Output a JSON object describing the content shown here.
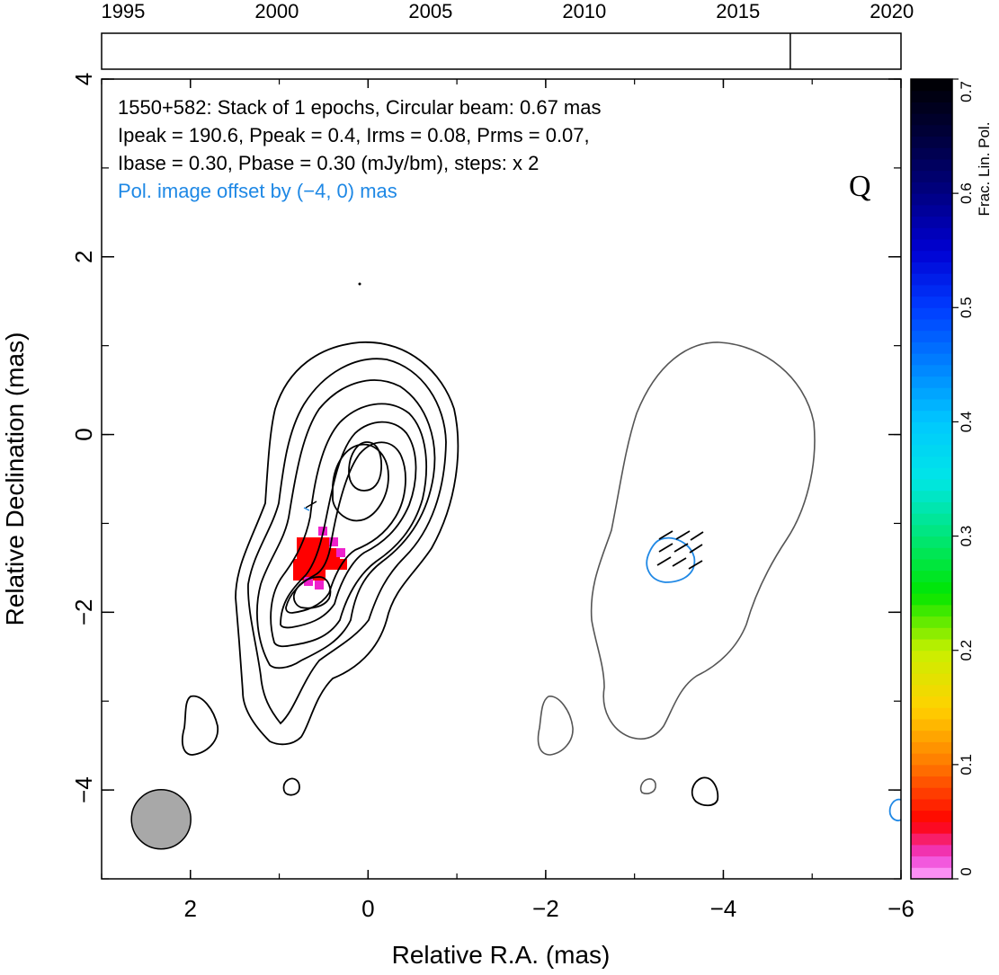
{
  "chart_data": {
    "type": "contour",
    "source": "1550+582",
    "info_lines": [
      "1550+582: Stack of 1 epochs, Circular beam: 0.67 mas",
      "Ipeak = 190.6, Ppeak = 0.4, Irms = 0.08, Prms = 0.07,",
      "Ibase = 0.30, Pbase = 0.30 (mJy/bm), steps: x 2"
    ],
    "offset_note": "Pol. image offset by (−4, 0) mas",
    "stokes_label": "Q",
    "xlabel": "Relative R.A. (mas)",
    "ylabel": "Relative Declination (mas)",
    "xlim": [
      3,
      -6
    ],
    "ylim": [
      -5,
      4
    ],
    "x_ticks": [
      {
        "value": 2,
        "label": "2"
      },
      {
        "value": 0,
        "label": "0"
      },
      {
        "value": -2,
        "label": "−2"
      },
      {
        "value": -4,
        "label": "−4"
      },
      {
        "value": -6,
        "label": "−6"
      }
    ],
    "y_ticks": [
      {
        "value": 4,
        "label": "4"
      },
      {
        "value": 2,
        "label": "2"
      },
      {
        "value": 0,
        "label": "0"
      },
      {
        "value": -2,
        "label": "−2"
      },
      {
        "value": -4,
        "label": "−4"
      }
    ],
    "timeline": {
      "xlim": [
        1994.3,
        2020.3
      ],
      "ticks": [
        {
          "value": 1995,
          "label": "1995"
        },
        {
          "value": 2000,
          "label": "2000"
        },
        {
          "value": 2005,
          "label": "2005"
        },
        {
          "value": 2010,
          "label": "2010"
        },
        {
          "value": 2015,
          "label": "2015"
        },
        {
          "value": 2020,
          "label": "2020"
        }
      ],
      "epochs": [
        2016.7
      ]
    },
    "colorbar": {
      "label": "Frac. Lin. Pol.",
      "range": [
        0,
        0.7
      ],
      "ticks": [
        {
          "value": 0,
          "label": "0"
        },
        {
          "value": 0.1,
          "label": "0.1"
        },
        {
          "value": 0.2,
          "label": "0.2"
        },
        {
          "value": 0.3,
          "label": "0.3"
        },
        {
          "value": 0.4,
          "label": "0.4"
        },
        {
          "value": 0.5,
          "label": "0.5"
        },
        {
          "value": 0.6,
          "label": "0.6"
        },
        {
          "value": 0.7,
          "label": "0.7"
        }
      ]
    },
    "beam": {
      "x": 2.33,
      "y": -4.33,
      "diameter_mas": 0.67
    },
    "stokes_i_peak": {
      "x": 0.0,
      "y": -0.35
    },
    "stokes_i_secondary_peak": {
      "x": 0.6,
      "y": -1.95
    },
    "fractional_pol_pixels": [
      {
        "x": 0.6,
        "y": -1.3,
        "value": 0.05
      },
      {
        "x": 0.5,
        "y": -1.4,
        "value": 0.05
      },
      {
        "x": 0.7,
        "y": -1.5,
        "value": 0.04
      },
      {
        "x": 0.4,
        "y": -1.2,
        "value": 0.02
      }
    ],
    "colors": {
      "total_intensity_contour": "#000000",
      "offset_contour": "#555555",
      "polarization_contour": "#1f88e5",
      "beam_fill": "#a8a8a8",
      "offset_note": "#1e88e5"
    }
  }
}
